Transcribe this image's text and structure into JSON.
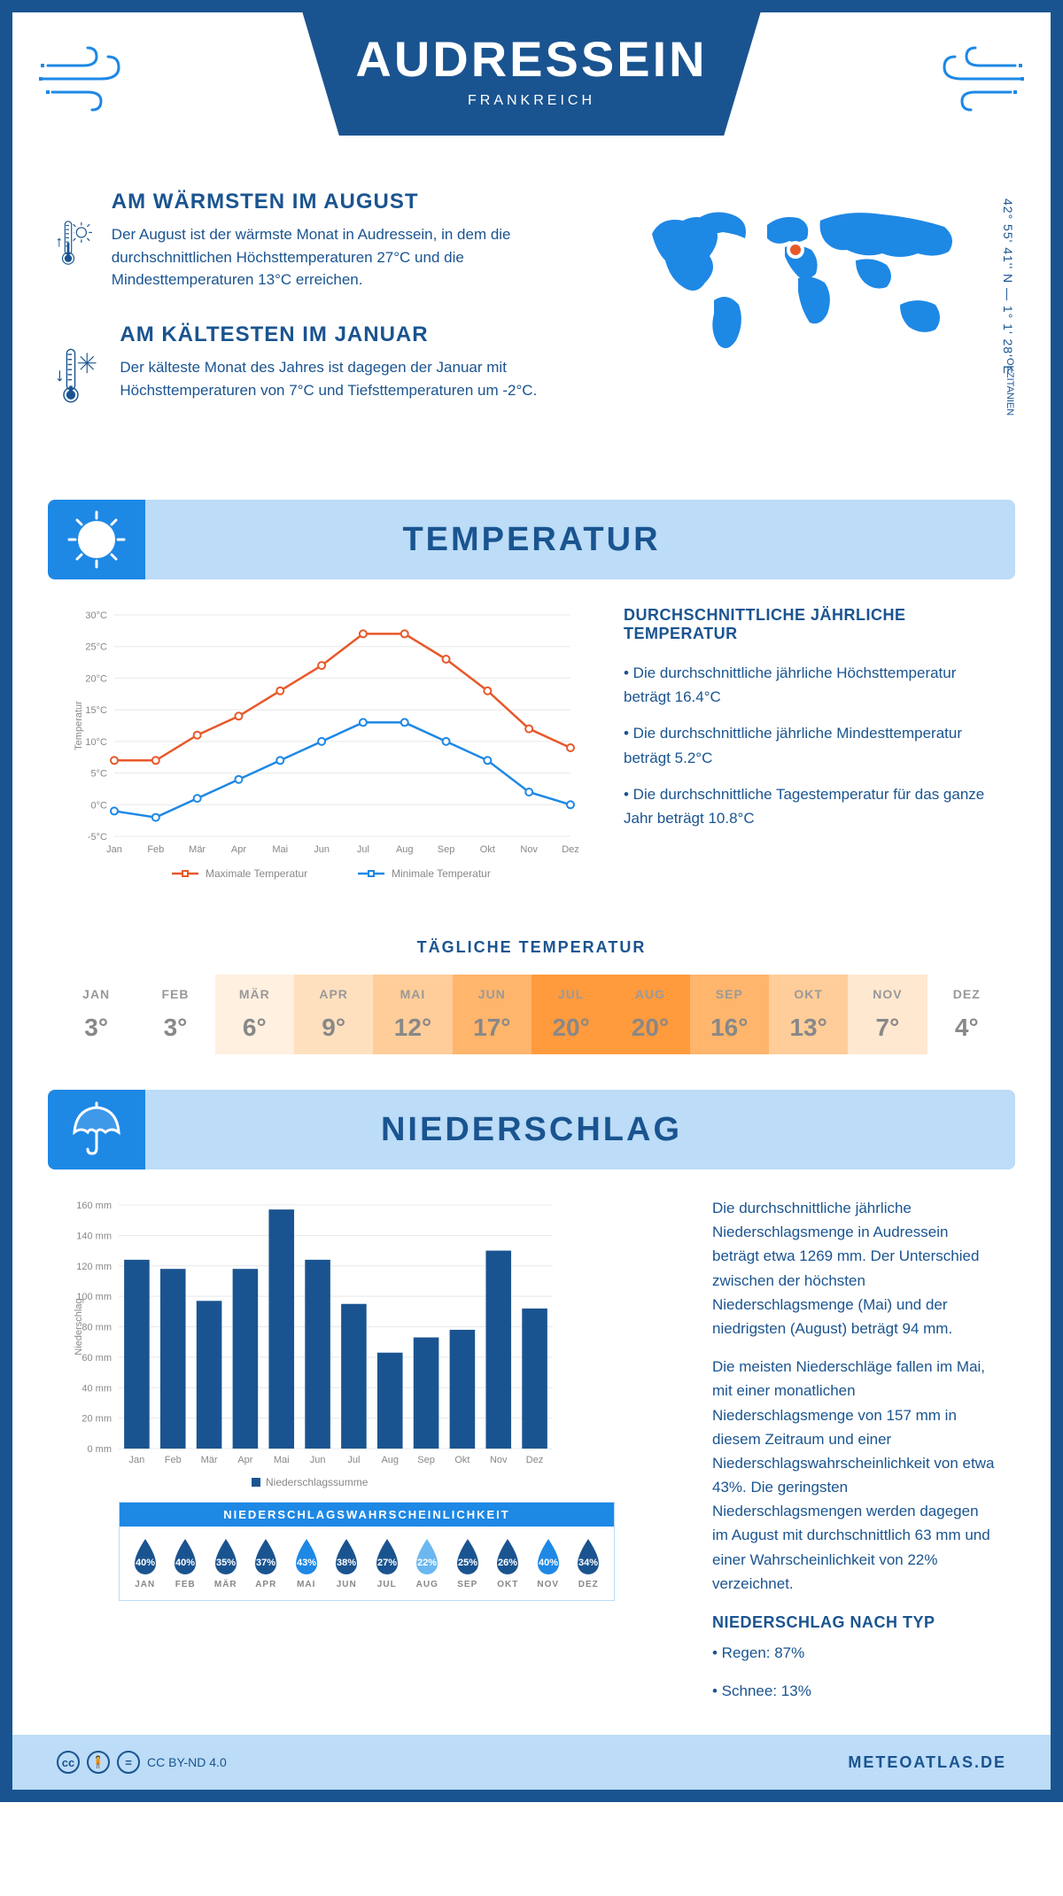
{
  "header": {
    "title": "AUDRESSEIN",
    "subtitle": "FRANKREICH"
  },
  "info": {
    "warm": {
      "title": "AM WÄRMSTEN IM AUGUST",
      "text": "Der August ist der wärmste Monat in Audressein, in dem die durchschnittlichen Höchsttemperaturen 27°C und die Mindesttemperaturen 13°C erreichen."
    },
    "cold": {
      "title": "AM KÄLTESTEN IM JANUAR",
      "text": "Der kälteste Monat des Jahres ist dagegen der Januar mit Höchsttemperaturen von 7°C und Tiefsttemperaturen um -2°C."
    }
  },
  "coords": "42° 55' 41'' N — 1° 1' 28'' E",
  "region": "OKZITANIEN",
  "temp_section": {
    "title": "TEMPERATUR"
  },
  "temp_chart": {
    "type": "line",
    "months": [
      "Jan",
      "Feb",
      "Mär",
      "Apr",
      "Mai",
      "Jun",
      "Jul",
      "Aug",
      "Sep",
      "Okt",
      "Nov",
      "Dez"
    ],
    "max": [
      7,
      7,
      11,
      14,
      18,
      22,
      27,
      27,
      23,
      18,
      12,
      9
    ],
    "min": [
      -1,
      -2,
      1,
      4,
      7,
      10,
      13,
      13,
      10,
      7,
      2,
      0
    ],
    "max_color": "#e8582a",
    "min_color": "#1e88e5",
    "ylim": [
      -5,
      30
    ],
    "ytick_step": 5,
    "ylabel": "Temperatur",
    "legend_max": "Maximale Temperatur",
    "legend_min": "Minimale Temperatur",
    "grid_color": "#e8e8e8",
    "background": "#ffffff"
  },
  "temp_side": {
    "title": "DURCHSCHNITTLICHE JÄHRLICHE TEMPERATUR",
    "line1": "• Die durchschnittliche jährliche Höchsttemperatur beträgt 16.4°C",
    "line2": "• Die durchschnittliche jährliche Mindesttemperatur beträgt 5.2°C",
    "line3": "• Die durchschnittliche Tagestemperatur für das ganze Jahr beträgt 10.8°C"
  },
  "daily": {
    "title": "TÄGLICHE TEMPERATUR",
    "months": [
      "JAN",
      "FEB",
      "MÄR",
      "APR",
      "MAI",
      "JUN",
      "JUL",
      "AUG",
      "SEP",
      "OKT",
      "NOV",
      "DEZ"
    ],
    "values": [
      "3°",
      "3°",
      "6°",
      "9°",
      "12°",
      "17°",
      "20°",
      "20°",
      "16°",
      "13°",
      "7°",
      "4°"
    ],
    "colors": [
      "#ffffff",
      "#ffffff",
      "#fff0e0",
      "#ffe0be",
      "#ffcd99",
      "#ffb56b",
      "#ff9a3d",
      "#ff9a3d",
      "#ffb56b",
      "#ffcd99",
      "#ffe8d0",
      "#ffffff"
    ]
  },
  "precip_section": {
    "title": "NIEDERSCHLAG"
  },
  "precip_chart": {
    "type": "bar",
    "months": [
      "Jan",
      "Feb",
      "Mär",
      "Apr",
      "Mai",
      "Jun",
      "Jul",
      "Aug",
      "Sep",
      "Okt",
      "Nov",
      "Dez"
    ],
    "values": [
      124,
      118,
      97,
      118,
      157,
      124,
      95,
      63,
      73,
      78,
      130,
      92
    ],
    "bar_color": "#1a5490",
    "ylim": [
      0,
      160
    ],
    "ytick_step": 20,
    "ylabel": "Niederschlag",
    "legend": "Niederschlagssumme",
    "grid_color": "#e8e8e8",
    "bar_width": 0.7
  },
  "precip_side": {
    "p1": "Die durchschnittliche jährliche Niederschlagsmenge in Audressein beträgt etwa 1269 mm. Der Unterschied zwischen der höchsten Niederschlagsmenge (Mai) und der niedrigsten (August) beträgt 94 mm.",
    "p2": "Die meisten Niederschläge fallen im Mai, mit einer monatlichen Niederschlagsmenge von 157 mm in diesem Zeitraum und einer Niederschlagswahrscheinlichkeit von etwa 43%. Die geringsten Niederschlagsmengen werden dagegen im August mit durchschnittlich 63 mm und einer Wahrscheinlichkeit von 22% verzeichnet.",
    "type_title": "NIEDERSCHLAG NACH TYP",
    "type1": "• Regen: 87%",
    "type2": "• Schnee: 13%"
  },
  "prob": {
    "title": "NIEDERSCHLAGSWAHRSCHEINLICHKEIT",
    "months": [
      "JAN",
      "FEB",
      "MÄR",
      "APR",
      "MAI",
      "JUN",
      "JUL",
      "AUG",
      "SEP",
      "OKT",
      "NOV",
      "DEZ"
    ],
    "values": [
      "40%",
      "40%",
      "35%",
      "37%",
      "43%",
      "38%",
      "27%",
      "22%",
      "25%",
      "26%",
      "40%",
      "34%"
    ],
    "colors": [
      "#1a5490",
      "#1a5490",
      "#1a5490",
      "#1a5490",
      "#1e88e5",
      "#1a5490",
      "#1a5490",
      "#6bb8f0",
      "#1a5490",
      "#1a5490",
      "#1e88e5",
      "#1a5490"
    ]
  },
  "footer": {
    "cc": "CC BY-ND 4.0",
    "brand": "METEOATLAS.DE"
  }
}
